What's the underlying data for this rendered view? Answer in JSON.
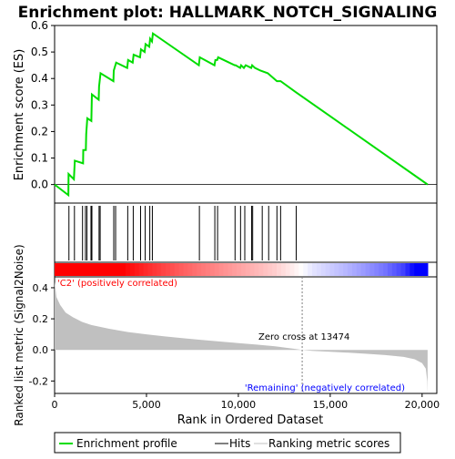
{
  "chart_data": {
    "type": "line",
    "title": "Enrichment plot: HALLMARK_NOTCH_SIGNALING",
    "panels": {
      "es": {
        "ylabel": "Enrichment score (ES)",
        "ylim": [
          -0.07,
          0.6
        ],
        "yticks": [
          0.0,
          0.1,
          0.2,
          0.3,
          0.4,
          0.5,
          0.6
        ],
        "ytick_labels": [
          "0.0",
          "0.1",
          "0.2",
          "0.3",
          "0.4",
          "0.5",
          "0.6"
        ],
        "curve": [
          [
            0,
            0.0
          ],
          [
            750,
            -0.04
          ],
          [
            760,
            0.04
          ],
          [
            1050,
            0.02
          ],
          [
            1100,
            0.09
          ],
          [
            1550,
            0.08
          ],
          [
            1560,
            0.13
          ],
          [
            1700,
            0.13
          ],
          [
            1720,
            0.19
          ],
          [
            1780,
            0.25
          ],
          [
            2000,
            0.24
          ],
          [
            2030,
            0.34
          ],
          [
            2400,
            0.32
          ],
          [
            2420,
            0.37
          ],
          [
            2500,
            0.42
          ],
          [
            3200,
            0.39
          ],
          [
            3220,
            0.43
          ],
          [
            3350,
            0.46
          ],
          [
            3950,
            0.44
          ],
          [
            4000,
            0.47
          ],
          [
            4250,
            0.46
          ],
          [
            4300,
            0.49
          ],
          [
            4650,
            0.48
          ],
          [
            4700,
            0.51
          ],
          [
            4900,
            0.5
          ],
          [
            4950,
            0.53
          ],
          [
            5150,
            0.52
          ],
          [
            5200,
            0.55
          ],
          [
            5300,
            0.54
          ],
          [
            5350,
            0.57
          ],
          [
            7850,
            0.45
          ],
          [
            7900,
            0.48
          ],
          [
            8700,
            0.45
          ],
          [
            8750,
            0.47
          ],
          [
            8850,
            0.47
          ],
          [
            8900,
            0.48
          ],
          [
            9800,
            0.45
          ],
          [
            9850,
            0.45
          ],
          [
            10100,
            0.44
          ],
          [
            10150,
            0.45
          ],
          [
            10300,
            0.44
          ],
          [
            10400,
            0.45
          ],
          [
            10700,
            0.44
          ],
          [
            10750,
            0.45
          ],
          [
            10900,
            0.44
          ],
          [
            11200,
            0.43
          ],
          [
            11600,
            0.42
          ],
          [
            12100,
            0.39
          ],
          [
            12300,
            0.39
          ],
          [
            13100,
            0.35
          ],
          [
            20300,
            0.0
          ]
        ]
      },
      "hits": {
        "positions": [
          780,
          1080,
          1520,
          1680,
          1760,
          1980,
          2030,
          2420,
          2480,
          3220,
          3320,
          3980,
          4280,
          4680,
          4930,
          5180,
          5320,
          7880,
          8720,
          8870,
          9820,
          10120,
          10350,
          10720,
          10780,
          11300,
          11650,
          12100,
          12300,
          13150
        ]
      },
      "ranking": {
        "ylabel": "Ranked list metric (Signal2Noise)",
        "ylim": [
          -0.28,
          0.47
        ],
        "yticks": [
          -0.2,
          0.0,
          0.2,
          0.4
        ],
        "ytick_labels": [
          "-0.2",
          "0.0",
          "0.2",
          "0.4"
        ],
        "curve": [
          [
            0,
            0.44
          ],
          [
            100,
            0.34
          ],
          [
            300,
            0.29
          ],
          [
            600,
            0.24
          ],
          [
            1000,
            0.21
          ],
          [
            1500,
            0.18
          ],
          [
            2000,
            0.16
          ],
          [
            3000,
            0.135
          ],
          [
            4000,
            0.115
          ],
          [
            5000,
            0.1
          ],
          [
            6000,
            0.087
          ],
          [
            7000,
            0.075
          ],
          [
            8000,
            0.064
          ],
          [
            9000,
            0.054
          ],
          [
            10000,
            0.044
          ],
          [
            11000,
            0.034
          ],
          [
            12000,
            0.023
          ],
          [
            13000,
            0.008
          ],
          [
            13474,
            0.0
          ],
          [
            14000,
            -0.006
          ],
          [
            15000,
            -0.012
          ],
          [
            16000,
            -0.018
          ],
          [
            17000,
            -0.025
          ],
          [
            18000,
            -0.033
          ],
          [
            19000,
            -0.045
          ],
          [
            19600,
            -0.06
          ],
          [
            20000,
            -0.085
          ],
          [
            20200,
            -0.12
          ],
          [
            20280,
            -0.2
          ],
          [
            20300,
            -0.28
          ]
        ],
        "zero_cross": 13474,
        "zero_cross_label": "Zero cross at 13474",
        "pos_label": "'C2' (positively correlated)",
        "neg_label": "'Remaining' (negatively correlated)"
      }
    },
    "xlabel": "Rank in Ordered Dataset",
    "xlim": [
      0,
      20800
    ],
    "xticks": [
      0,
      5000,
      10000,
      15000,
      20000
    ],
    "xtick_labels": [
      "0",
      "5,000",
      "10,000",
      "15,000",
      "20,000"
    ],
    "xmax_rank": 20300,
    "legend": {
      "placement": "bottom",
      "items": [
        "Enrichment profile",
        "Hits",
        "Ranking metric scores"
      ]
    },
    "colors": {
      "profile": "#00dd00",
      "hits": "#000000",
      "ranking_fill": "#c0c0c0",
      "pos_label": "#ff0000",
      "neg_label": "#0000ff",
      "zero_line": "#808080"
    }
  }
}
